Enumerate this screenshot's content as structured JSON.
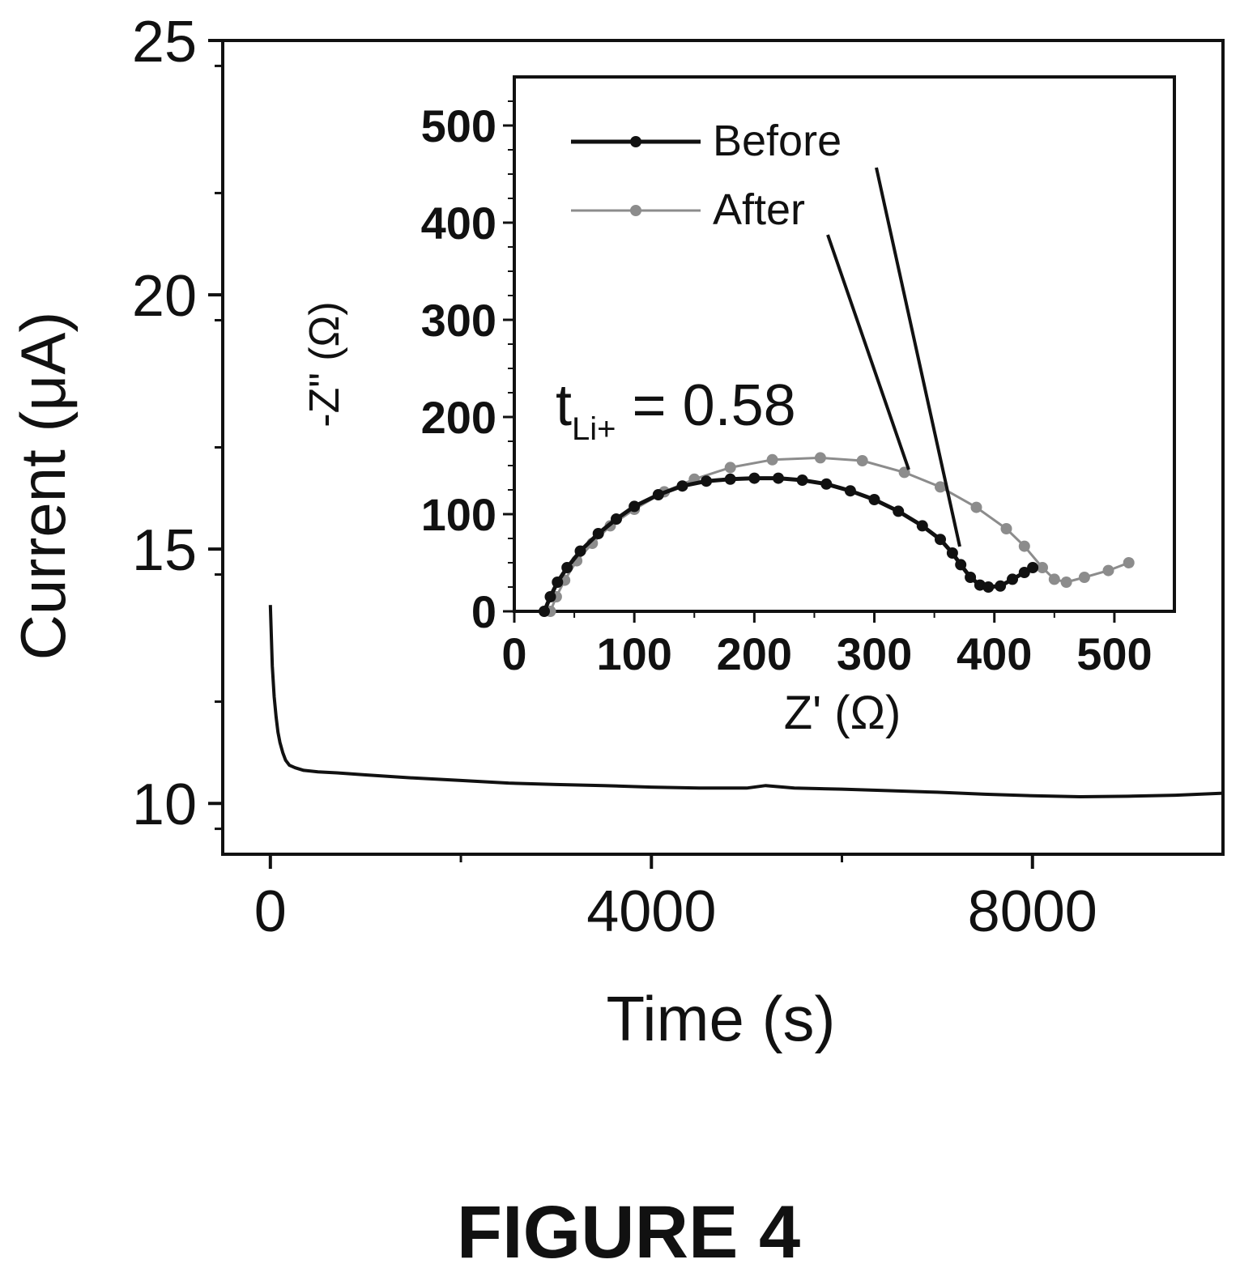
{
  "figure_label": "FIGURE 4",
  "colors": {
    "axis": "#111111",
    "before": "#111111",
    "after": "#8c8c8c",
    "background": "#ffffff"
  },
  "chart_data": [
    {
      "type": "line",
      "role": "main",
      "title": "",
      "xlabel": "Time (s)",
      "ylabel": "Current (μA)",
      "xlim": [
        -500,
        10000
      ],
      "ylim": [
        9,
        25
      ],
      "xticks": [
        0,
        4000,
        8000
      ],
      "xtick_labels": [
        "0",
        "4000",
        "8000"
      ],
      "yticks": [
        10,
        15,
        20,
        25
      ],
      "ytick_labels": [
        "10",
        "15",
        "20",
        "25"
      ],
      "grid": false,
      "series": [
        {
          "x": [
            0,
            20,
            40,
            60,
            80,
            100,
            130,
            160,
            200,
            260,
            350,
            500,
            700,
            1000,
            1500,
            2000,
            2500,
            3000,
            3500,
            4000,
            4500,
            5000,
            5200,
            5500,
            6000,
            6500,
            7000,
            7500,
            8000,
            8500,
            9000,
            9500,
            10000
          ],
          "y": [
            13.9,
            12.7,
            12.1,
            11.7,
            11.4,
            11.2,
            11.0,
            10.85,
            10.75,
            10.7,
            10.65,
            10.62,
            10.6,
            10.56,
            10.5,
            10.45,
            10.4,
            10.37,
            10.35,
            10.32,
            10.3,
            10.3,
            10.35,
            10.3,
            10.28,
            10.25,
            10.22,
            10.18,
            10.15,
            10.13,
            10.14,
            10.16,
            10.2
          ]
        }
      ]
    },
    {
      "type": "line",
      "role": "inset",
      "xlabel": "Z' (Ω)",
      "ylabel": "-Z\" (Ω)",
      "xlim": [
        0,
        550
      ],
      "ylim": [
        0,
        550
      ],
      "xticks": [
        0,
        100,
        200,
        300,
        400,
        500
      ],
      "xtick_labels": [
        "0",
        "100",
        "200",
        "300",
        "400",
        "500"
      ],
      "yticks": [
        0,
        100,
        200,
        300,
        400,
        500
      ],
      "ytick_labels": [
        "0",
        "100",
        "200",
        "300",
        "400",
        "500"
      ],
      "legend_position": "top-left",
      "annotation": {
        "text": "t",
        "subscript": "Li+",
        "suffix": " = 0.58"
      },
      "series": [
        {
          "name": "Before",
          "x": [
            25,
            30,
            36,
            44,
            55,
            70,
            85,
            100,
            120,
            140,
            160,
            180,
            200,
            220,
            240,
            260,
            280,
            300,
            320,
            340,
            355,
            365,
            372,
            380,
            388,
            395,
            405,
            415,
            425,
            432
          ],
          "y": [
            0,
            15,
            30,
            45,
            62,
            80,
            95,
            108,
            120,
            129,
            134,
            136,
            137,
            137,
            135,
            131,
            124,
            115,
            103,
            88,
            74,
            60,
            48,
            35,
            27,
            25,
            26,
            33,
            40,
            45
          ]
        },
        {
          "name": "After",
          "x": [
            30,
            35,
            42,
            52,
            65,
            80,
            100,
            125,
            150,
            180,
            215,
            255,
            290,
            325,
            355,
            385,
            410,
            425,
            440,
            450,
            460,
            475,
            495,
            512
          ],
          "y": [
            0,
            15,
            32,
            52,
            70,
            88,
            105,
            123,
            136,
            148,
            156,
            158,
            155,
            143,
            128,
            107,
            85,
            67,
            45,
            33,
            30,
            35,
            42,
            50
          ]
        }
      ]
    }
  ]
}
